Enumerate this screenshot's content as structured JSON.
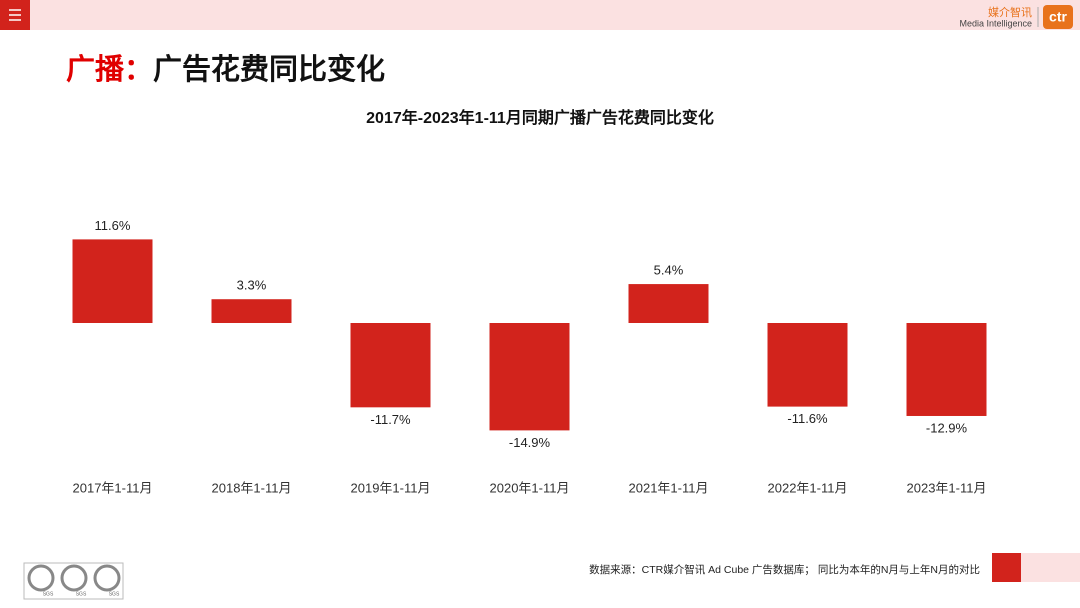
{
  "header": {
    "title_accent": "广播：",
    "title_main": "广告花费同比变化"
  },
  "logo": {
    "cn": "媒介智讯",
    "en": "Media Intelligence",
    "mark": "ctr"
  },
  "chart_data": {
    "type": "bar",
    "title": "2017年-2023年1-11月同期广播广告花费同比变化",
    "categories": [
      "2017年1-11月",
      "2018年1-11月",
      "2019年1-11月",
      "2020年1-11月",
      "2021年1-11月",
      "2022年1-11月",
      "2023年1-11月"
    ],
    "values": [
      11.6,
      3.3,
      -11.7,
      -14.9,
      5.4,
      -11.6,
      -12.9
    ],
    "value_labels": [
      "11.6%",
      "3.3%",
      "-11.7%",
      "-14.9%",
      "5.4%",
      "-11.6%",
      "-12.9%"
    ],
    "color": "#d2231c",
    "grid": false
  },
  "footer": {
    "source": "数据来源：CTR媒介智讯 Ad Cube 广告数据库；  同比为本年的N月与上年N月的对比",
    "certifications": [
      "SGS",
      "SGS",
      "SGS"
    ]
  }
}
